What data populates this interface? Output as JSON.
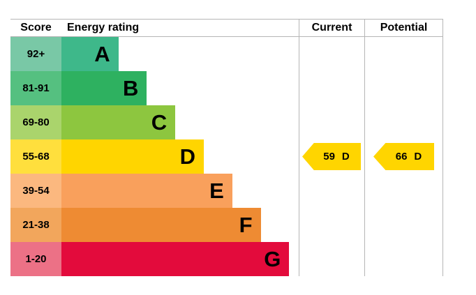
{
  "header": {
    "score": "Score",
    "energy_rating": "Energy rating",
    "current": "Current",
    "potential": "Potential"
  },
  "bands": [
    {
      "score": "92+",
      "letter": "A",
      "bar_color": "#3eb88a",
      "score_bg": "#79c8a6",
      "width_pct": 24
    },
    {
      "score": "81-91",
      "letter": "B",
      "bar_color": "#2eb160",
      "score_bg": "#55c080",
      "width_pct": 36
    },
    {
      "score": "69-80",
      "letter": "C",
      "bar_color": "#8dc63f",
      "score_bg": "#aad46c",
      "width_pct": 48
    },
    {
      "score": "55-68",
      "letter": "D",
      "bar_color": "#ffd500",
      "score_bg": "#ffdf3d",
      "width_pct": 60
    },
    {
      "score": "39-54",
      "letter": "E",
      "bar_color": "#f9a05c",
      "score_bg": "#fbb87f",
      "width_pct": 72
    },
    {
      "score": "21-38",
      "letter": "F",
      "bar_color": "#ee8b33",
      "score_bg": "#f2a65c",
      "width_pct": 84
    },
    {
      "score": "1-20",
      "letter": "G",
      "bar_color": "#e30b3c",
      "score_bg": "#ec7186",
      "width_pct": 96
    }
  ],
  "current": {
    "value": "59",
    "letter": "D",
    "band_index": 3,
    "arrow_color": "#ffd500"
  },
  "potential": {
    "value": "66",
    "letter": "D",
    "band_index": 3,
    "arrow_color": "#ffd500"
  },
  "chart_data": {
    "type": "bar",
    "orientation": "horizontal",
    "title": "Energy rating",
    "categories": [
      "A",
      "B",
      "C",
      "D",
      "E",
      "F",
      "G"
    ],
    "score_ranges": [
      "92+",
      "81-91",
      "69-80",
      "55-68",
      "39-54",
      "21-38",
      "1-20"
    ],
    "band_colors": [
      "#3eb88a",
      "#2eb160",
      "#8dc63f",
      "#ffd500",
      "#f9a05c",
      "#ee8b33",
      "#e30b3c"
    ],
    "bar_widths_pct": [
      24,
      36,
      48,
      60,
      72,
      84,
      96
    ],
    "current": {
      "score": 59,
      "rating": "D"
    },
    "potential": {
      "score": 66,
      "rating": "D"
    },
    "legend_position": "none",
    "grid": false
  }
}
